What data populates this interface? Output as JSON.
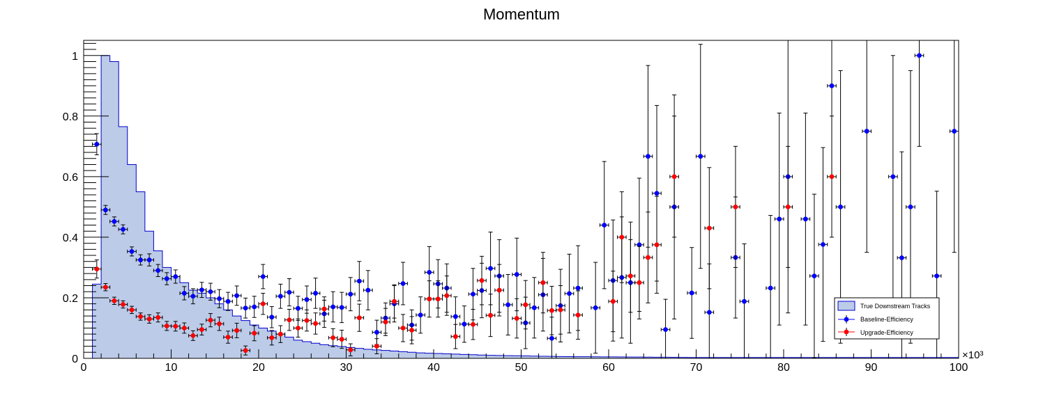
{
  "chart_data": {
    "type": "scatter",
    "title": "Momentum",
    "xlabel": "",
    "ylabel": "",
    "x_multiplier_label": "×10³",
    "xlim": [
      0,
      100
    ],
    "ylim": [
      0,
      1.05
    ],
    "xticks": [
      0,
      10,
      20,
      30,
      40,
      50,
      60,
      70,
      80,
      90,
      100
    ],
    "yticks": [
      0,
      0.2,
      0.4,
      0.6,
      0.8,
      1
    ],
    "grid": false,
    "legend_position": "bottom-right",
    "histogram": {
      "name": "True Downstream Tracks",
      "color": "#bccbe8",
      "edge_color": "#0000cc",
      "bin_width": 1,
      "x_start": 1,
      "values": [
        0.245,
        1.0,
        0.98,
        0.765,
        0.64,
        0.55,
        0.42,
        0.355,
        0.3,
        0.27,
        0.25,
        0.225,
        0.215,
        0.2,
        0.18,
        0.16,
        0.14,
        0.125,
        0.11,
        0.1,
        0.09,
        0.08,
        0.07,
        0.06,
        0.055,
        0.05,
        0.045,
        0.042,
        0.039,
        0.036,
        0.033,
        0.03,
        0.028,
        0.026,
        0.024,
        0.022,
        0.02,
        0.018,
        0.017,
        0.016,
        0.015,
        0.014,
        0.013,
        0.012,
        0.011,
        0.01,
        0.0095,
        0.009,
        0.0085,
        0.008,
        0.0075,
        0.007,
        0.0065,
        0.006,
        0.0058,
        0.0056,
        0.0054,
        0.0052,
        0.005,
        0.0048,
        0.0046,
        0.0044,
        0.0042,
        0.004,
        0.0038,
        0.0036,
        0.0034,
        0.0032,
        0.003,
        0.003,
        0.003,
        0.003,
        0.003,
        0.003,
        0.003,
        0.003,
        0.003,
        0.003,
        0.003,
        0.003,
        0.003,
        0.003,
        0.003,
        0.003,
        0.003,
        0.003,
        0.003,
        0.003,
        0.003,
        0.003,
        0.003,
        0.003,
        0.003,
        0.003,
        0.003,
        0.003,
        0.003,
        0.003,
        0.003
      ]
    },
    "series": [
      {
        "name": "Baseline-Efficiency",
        "color": "#0000ff",
        "points": [
          [
            1.5,
            0.707,
            0.035
          ],
          [
            2.5,
            0.49,
            0.015
          ],
          [
            3.5,
            0.452,
            0.015
          ],
          [
            4.5,
            0.426,
            0.015
          ],
          [
            5.5,
            0.353,
            0.015
          ],
          [
            6.5,
            0.325,
            0.017
          ],
          [
            7.5,
            0.325,
            0.02
          ],
          [
            8.5,
            0.29,
            0.02
          ],
          [
            9.5,
            0.263,
            0.02
          ],
          [
            10.5,
            0.27,
            0.022
          ],
          [
            11.5,
            0.215,
            0.022
          ],
          [
            12.5,
            0.205,
            0.025
          ],
          [
            13.5,
            0.226,
            0.025
          ],
          [
            14.5,
            0.22,
            0.028
          ],
          [
            15.5,
            0.197,
            0.03
          ],
          [
            16.5,
            0.188,
            0.03
          ],
          [
            17.5,
            0.207,
            0.032
          ],
          [
            18.5,
            0.166,
            0.033
          ],
          [
            19.5,
            0.17,
            0.035
          ],
          [
            20.5,
            0.27,
            0.04
          ],
          [
            21.5,
            0.136,
            0.035
          ],
          [
            22.5,
            0.205,
            0.04
          ],
          [
            23.5,
            0.218,
            0.045
          ],
          [
            24.5,
            0.165,
            0.04
          ],
          [
            25.5,
            0.194,
            0.045
          ],
          [
            26.5,
            0.215,
            0.05
          ],
          [
            27.5,
            0.147,
            0.045
          ],
          [
            28.5,
            0.17,
            0.05
          ],
          [
            29.5,
            0.168,
            0.05
          ],
          [
            30.5,
            0.212,
            0.055
          ],
          [
            31.5,
            0.255,
            0.065
          ],
          [
            32.5,
            0.225,
            0.065
          ],
          [
            33.5,
            0.086,
            0.04
          ],
          [
            34.5,
            0.133,
            0.05
          ],
          [
            35.5,
            0.18,
            0.06
          ],
          [
            36.5,
            0.247,
            0.07
          ],
          [
            37.5,
            0.11,
            0.05
          ],
          [
            38.5,
            0.143,
            0.06
          ],
          [
            39.5,
            0.284,
            0.085
          ],
          [
            40.5,
            0.246,
            0.08
          ],
          [
            41.5,
            0.232,
            0.08
          ],
          [
            42.5,
            0.138,
            0.065
          ],
          [
            43.5,
            0.113,
            0.06
          ],
          [
            44.5,
            0.212,
            0.085
          ],
          [
            45.5,
            0.224,
            0.09
          ],
          [
            46.5,
            0.297,
            0.12
          ],
          [
            47.5,
            0.272,
            0.12
          ],
          [
            48.5,
            0.177,
            0.1
          ],
          [
            49.5,
            0.277,
            0.12
          ],
          [
            50.5,
            0.117,
            0.085
          ],
          [
            51.5,
            0.167,
            0.1
          ],
          [
            52.5,
            0.21,
            0.12
          ],
          [
            53.5,
            0.066,
            0.07
          ],
          [
            54.5,
            0.174,
            0.12
          ],
          [
            55.5,
            0.214,
            0.13
          ],
          [
            56.5,
            0.232,
            0.14
          ],
          [
            58.5,
            0.167,
            0.15
          ],
          [
            59.5,
            0.44,
            0.21
          ],
          [
            60.5,
            0.257,
            0.2
          ],
          [
            61.5,
            0.267,
            0.2
          ],
          [
            62.5,
            0.25,
            0.2
          ],
          [
            63.5,
            0.375,
            0.22
          ],
          [
            64.5,
            0.667,
            0.3
          ],
          [
            65.5,
            0.545,
            0.29
          ],
          [
            66.5,
            0.095,
            0.1
          ],
          [
            67.5,
            0.5,
            0.37
          ],
          [
            69.5,
            0.216,
            0.15
          ],
          [
            70.5,
            0.667,
            0.37
          ],
          [
            71.5,
            0.152,
            0.16
          ],
          [
            74.5,
            0.333,
            0.2
          ],
          [
            75.5,
            0.188,
            0.19
          ],
          [
            78.5,
            0.232,
            0.24
          ],
          [
            79.5,
            0.46,
            0.35
          ],
          [
            80.5,
            0.6,
            0.45
          ],
          [
            82.5,
            0.46,
            0.35
          ],
          [
            83.5,
            0.272,
            0.27
          ],
          [
            84.5,
            0.376,
            0.32
          ],
          [
            85.5,
            0.9,
            0.3
          ],
          [
            86.5,
            0.5,
            0.45
          ],
          [
            89.5,
            0.75,
            0.4
          ],
          [
            92.5,
            0.6,
            0.4
          ],
          [
            93.5,
            0.332,
            0.35
          ],
          [
            94.5,
            0.5,
            0.45
          ],
          [
            95.5,
            1.0,
            0.3
          ],
          [
            97.5,
            0.272,
            0.28
          ],
          [
            99.5,
            0.75,
            0.4
          ]
        ]
      },
      {
        "name": "Upgrade-Efficiency",
        "color": "#ff0000",
        "points": [
          [
            1.5,
            0.295,
            0.03
          ],
          [
            2.5,
            0.235,
            0.012
          ],
          [
            3.5,
            0.19,
            0.012
          ],
          [
            4.5,
            0.178,
            0.012
          ],
          [
            5.5,
            0.16,
            0.012
          ],
          [
            6.5,
            0.138,
            0.012
          ],
          [
            7.5,
            0.13,
            0.014
          ],
          [
            8.5,
            0.135,
            0.015
          ],
          [
            9.5,
            0.107,
            0.015
          ],
          [
            10.5,
            0.106,
            0.016
          ],
          [
            11.5,
            0.1,
            0.017
          ],
          [
            12.5,
            0.075,
            0.016
          ],
          [
            13.5,
            0.095,
            0.018
          ],
          [
            14.5,
            0.126,
            0.022
          ],
          [
            15.5,
            0.114,
            0.022
          ],
          [
            16.5,
            0.07,
            0.02
          ],
          [
            17.5,
            0.092,
            0.024
          ],
          [
            18.5,
            0.026,
            0.015
          ],
          [
            19.5,
            0.083,
            0.025
          ],
          [
            20.5,
            0.18,
            0.035
          ],
          [
            21.5,
            0.068,
            0.024
          ],
          [
            22.5,
            0.08,
            0.028
          ],
          [
            23.5,
            0.127,
            0.035
          ],
          [
            24.5,
            0.1,
            0.03
          ],
          [
            25.5,
            0.125,
            0.035
          ],
          [
            26.5,
            0.115,
            0.035
          ],
          [
            27.5,
            0.163,
            0.04
          ],
          [
            28.5,
            0.068,
            0.03
          ],
          [
            29.5,
            0.063,
            0.03
          ],
          [
            30.5,
            0.028,
            0.02
          ],
          [
            31.5,
            0.134,
            0.045
          ],
          [
            33.5,
            0.04,
            0.025
          ],
          [
            34.5,
            0.12,
            0.045
          ],
          [
            35.5,
            0.188,
            0.055
          ],
          [
            36.5,
            0.1,
            0.045
          ],
          [
            37.5,
            0.093,
            0.045
          ],
          [
            39.5,
            0.196,
            0.06
          ],
          [
            40.5,
            0.196,
            0.06
          ],
          [
            41.5,
            0.207,
            0.065
          ],
          [
            42.5,
            0.072,
            0.04
          ],
          [
            44.5,
            0.112,
            0.05
          ],
          [
            45.5,
            0.257,
            0.08
          ],
          [
            46.5,
            0.142,
            0.07
          ],
          [
            47.5,
            0.225,
            0.085
          ],
          [
            49.5,
            0.132,
            0.065
          ],
          [
            50.5,
            0.177,
            0.08
          ],
          [
            52.5,
            0.25,
            0.1
          ],
          [
            53.5,
            0.158,
            0.08
          ],
          [
            54.5,
            0.16,
            0.08
          ],
          [
            56.5,
            0.143,
            0.08
          ],
          [
            60.5,
            0.188,
            0.1
          ],
          [
            61.5,
            0.4,
            0.15
          ],
          [
            62.5,
            0.272,
            0.12
          ],
          [
            63.5,
            0.25,
            0.12
          ],
          [
            64.5,
            0.333,
            0.15
          ],
          [
            65.5,
            0.375,
            0.16
          ],
          [
            67.5,
            0.6,
            0.2
          ],
          [
            71.5,
            0.43,
            0.2
          ],
          [
            74.5,
            0.5,
            0.2
          ],
          [
            80.5,
            0.5,
            0.2
          ],
          [
            85.5,
            0.6,
            0.2
          ]
        ]
      }
    ]
  }
}
